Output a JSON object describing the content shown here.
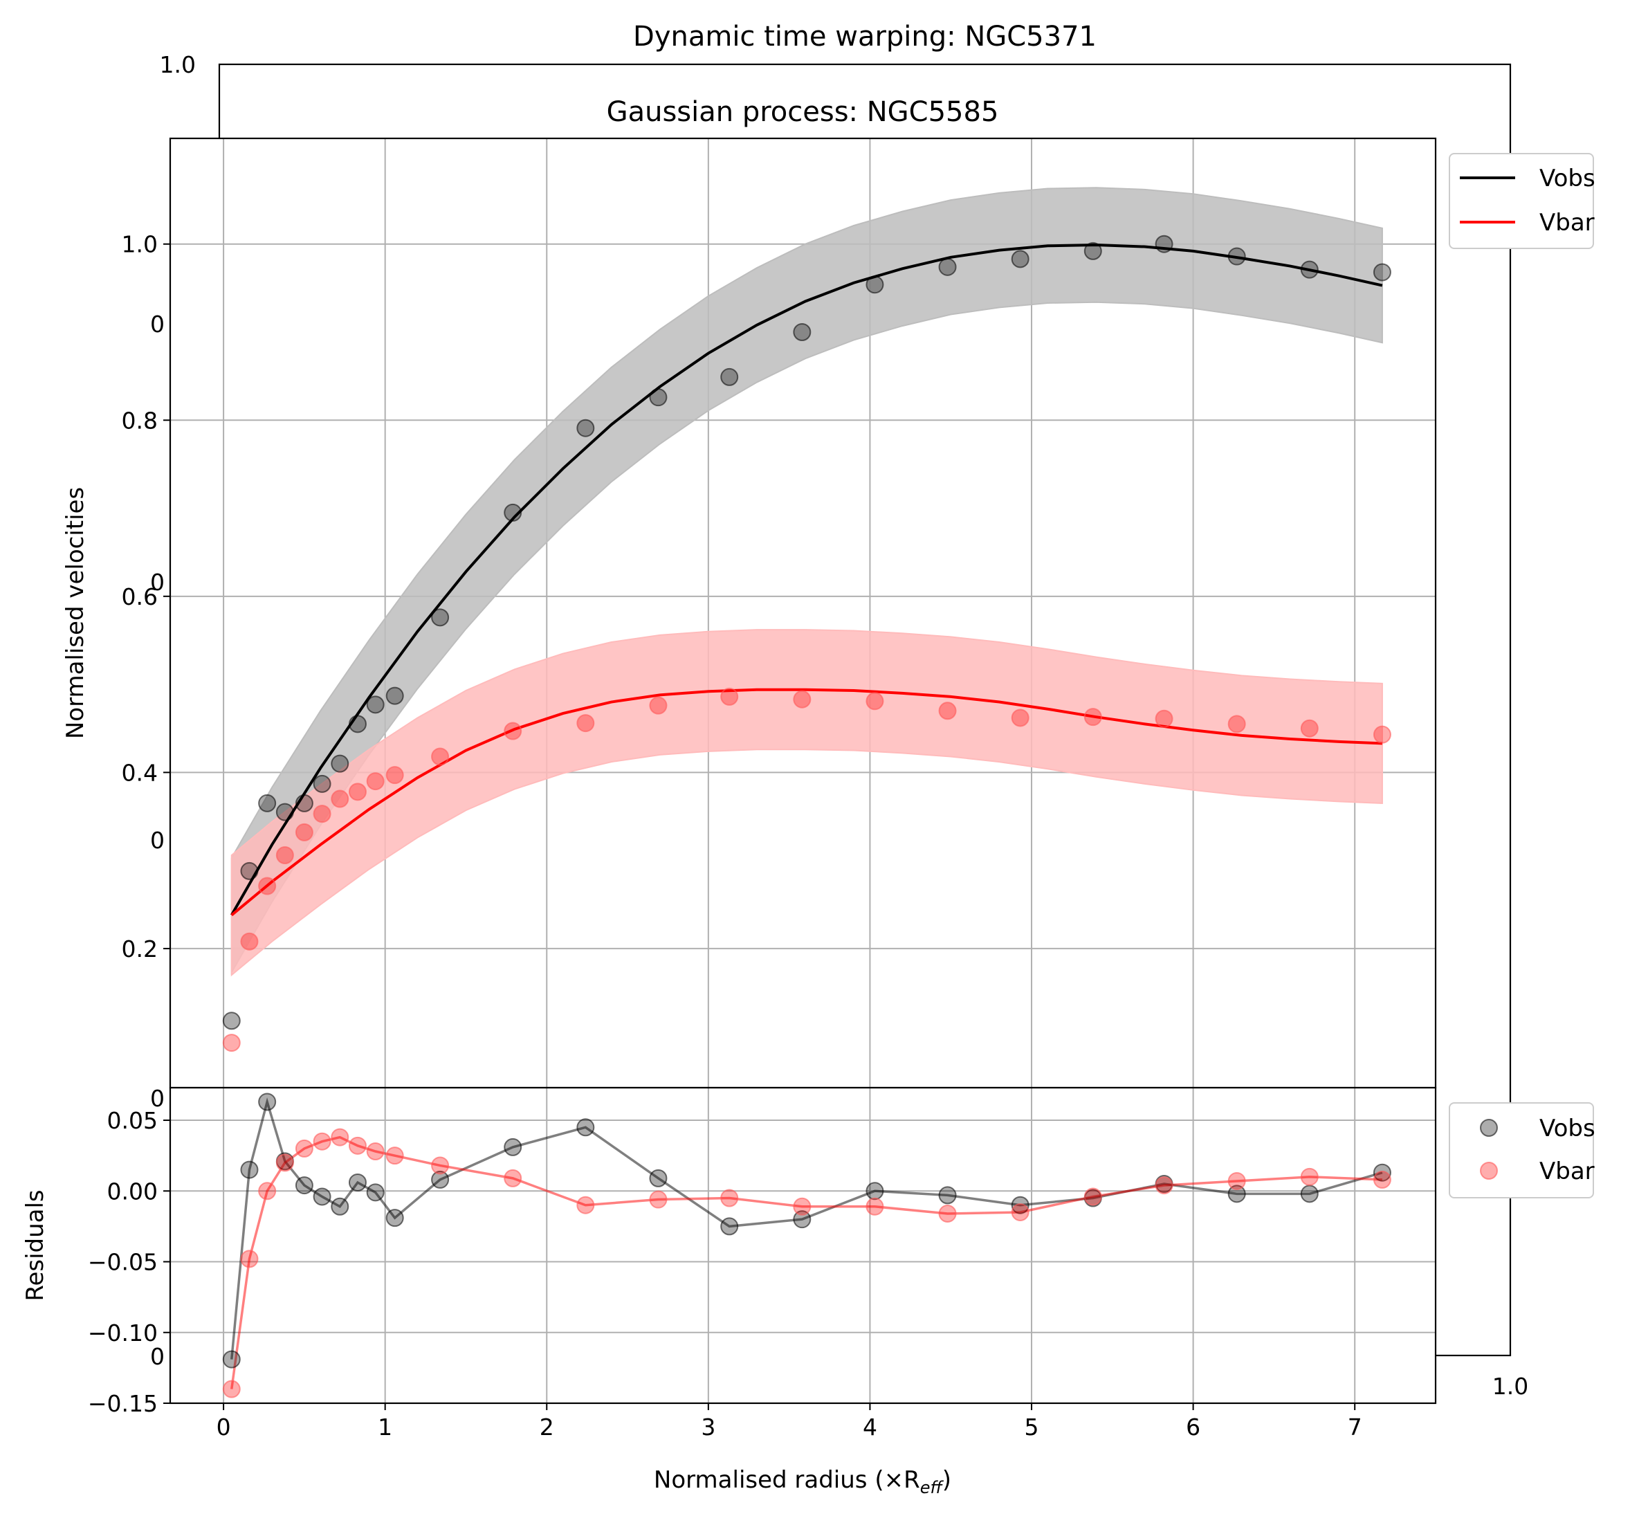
{
  "chart_data": {
    "type": "line",
    "bg_axes": {
      "title": "Dynamic time warping: NGC5371",
      "tick_labels": {
        "y_top": "1.0",
        "y_clipped": [
          "0",
          "0",
          "0",
          "0",
          "0"
        ],
        "x_right": "1.0"
      }
    },
    "main": {
      "title": "Gaussian process: NGC5585",
      "ylabel": "Normalised velocities",
      "xlim": [
        -0.33,
        7.5
      ],
      "ylim": [
        0.042,
        1.12
      ],
      "yticks": [
        0.2,
        0.4,
        0.6,
        0.8,
        1.0
      ],
      "ytick_labels": [
        "0.2",
        "0.4",
        "0.6",
        "0.8",
        "1.0"
      ],
      "grid": true,
      "legend_position": "outside-right-top",
      "legend": [
        "Vobs",
        "Vbar"
      ],
      "series": [
        {
          "name": "Vobs",
          "color": "#000000",
          "band_color": "#bdbdbd",
          "fit_x": [
            0.05,
            0.3,
            0.6,
            0.9,
            1.2,
            1.5,
            1.8,
            2.1,
            2.4,
            2.7,
            3.0,
            3.3,
            3.6,
            3.9,
            4.2,
            4.5,
            4.8,
            5.1,
            5.4,
            5.7,
            6.0,
            6.3,
            6.6,
            6.9,
            7.17
          ],
          "fit_y": [
            0.238,
            0.318,
            0.405,
            0.485,
            0.56,
            0.628,
            0.69,
            0.745,
            0.795,
            0.838,
            0.876,
            0.908,
            0.935,
            0.956,
            0.972,
            0.985,
            0.993,
            0.998,
            0.999,
            0.997,
            0.992,
            0.984,
            0.975,
            0.964,
            0.953
          ],
          "band_halfwidth": 0.065,
          "points_x": [
            0.05,
            0.16,
            0.27,
            0.38,
            0.5,
            0.61,
            0.72,
            0.83,
            0.94,
            1.06,
            1.34,
            1.79,
            2.24,
            2.69,
            3.13,
            3.58,
            4.03,
            4.48,
            4.93,
            5.38,
            5.82,
            6.27,
            6.72,
            7.17
          ],
          "points_y": [
            0.118,
            0.288,
            0.365,
            0.355,
            0.365,
            0.387,
            0.41,
            0.455,
            0.477,
            0.487,
            0.576,
            0.695,
            0.791,
            0.826,
            0.849,
            0.9,
            0.954,
            0.974,
            0.983,
            0.992,
            1.0,
            0.986,
            0.971,
            0.968
          ]
        },
        {
          "name": "Vbar",
          "color": "#ff0000",
          "band_color": "#ffbbbb",
          "fit_x": [
            0.05,
            0.3,
            0.6,
            0.9,
            1.2,
            1.5,
            1.8,
            2.1,
            2.4,
            2.7,
            3.0,
            3.3,
            3.6,
            3.9,
            4.2,
            4.5,
            4.8,
            5.1,
            5.4,
            5.7,
            6.0,
            6.3,
            6.6,
            6.9,
            7.17
          ],
          "fit_y": [
            0.238,
            0.276,
            0.318,
            0.358,
            0.394,
            0.425,
            0.449,
            0.467,
            0.48,
            0.488,
            0.492,
            0.494,
            0.494,
            0.493,
            0.49,
            0.486,
            0.48,
            0.472,
            0.463,
            0.455,
            0.448,
            0.442,
            0.438,
            0.435,
            0.433
          ],
          "band_halfwidth": 0.068,
          "points_x": [
            0.05,
            0.16,
            0.27,
            0.38,
            0.5,
            0.61,
            0.72,
            0.83,
            0.94,
            1.06,
            1.34,
            1.79,
            2.24,
            2.69,
            3.13,
            3.58,
            4.03,
            4.48,
            4.93,
            5.38,
            5.82,
            6.27,
            6.72,
            7.17
          ],
          "points_y": [
            0.093,
            0.208,
            0.271,
            0.306,
            0.332,
            0.353,
            0.37,
            0.378,
            0.39,
            0.397,
            0.418,
            0.447,
            0.456,
            0.476,
            0.486,
            0.483,
            0.481,
            0.47,
            0.462,
            0.463,
            0.461,
            0.455,
            0.45,
            0.443
          ]
        }
      ]
    },
    "residuals": {
      "ylabel": "Residuals",
      "xlabel": "Normalised radius (×R",
      "xlabel_sub": "eff",
      "xlabel_close": ")",
      "xlim": [
        -0.33,
        7.5
      ],
      "ylim": [
        -0.15,
        0.073
      ],
      "xticks": [
        0,
        1,
        2,
        3,
        4,
        5,
        6,
        7
      ],
      "xtick_labels": [
        "0",
        "1",
        "2",
        "3",
        "4",
        "5",
        "6",
        "7"
      ],
      "yticks": [
        -0.15,
        -0.1,
        -0.05,
        0.0,
        0.05
      ],
      "ytick_labels": [
        "−0.15",
        "−0.10",
        "−0.05",
        "0.00",
        "0.05"
      ],
      "grid": true,
      "legend_position": "outside-right-top",
      "legend": [
        "Vobs",
        "Vbar"
      ],
      "series": [
        {
          "name": "Vobs",
          "color": "#000000",
          "x": [
            0.05,
            0.16,
            0.27,
            0.38,
            0.5,
            0.61,
            0.72,
            0.83,
            0.94,
            1.06,
            1.34,
            1.79,
            2.24,
            2.69,
            3.13,
            3.58,
            4.03,
            4.48,
            4.93,
            5.38,
            5.82,
            6.27,
            6.72,
            7.17
          ],
          "y": [
            -0.119,
            0.015,
            0.063,
            0.021,
            0.004,
            -0.004,
            -0.011,
            0.006,
            -0.001,
            -0.019,
            0.008,
            0.031,
            0.045,
            0.009,
            -0.025,
            -0.02,
            0.0,
            -0.003,
            -0.01,
            -0.005,
            0.005,
            -0.002,
            -0.002,
            0.013
          ]
        },
        {
          "name": "Vbar",
          "color": "#ff0000",
          "x": [
            0.05,
            0.16,
            0.27,
            0.38,
            0.5,
            0.61,
            0.72,
            0.83,
            0.94,
            1.06,
            1.34,
            1.79,
            2.24,
            2.69,
            3.13,
            3.58,
            4.03,
            4.48,
            4.93,
            5.38,
            5.82,
            6.27,
            6.72,
            7.17
          ],
          "y": [
            -0.14,
            -0.048,
            0.0,
            0.02,
            0.03,
            0.035,
            0.038,
            0.032,
            0.028,
            0.025,
            0.018,
            0.009,
            -0.01,
            -0.006,
            -0.005,
            -0.011,
            -0.011,
            -0.016,
            -0.015,
            -0.004,
            0.004,
            0.007,
            0.01,
            0.008
          ]
        }
      ]
    }
  }
}
